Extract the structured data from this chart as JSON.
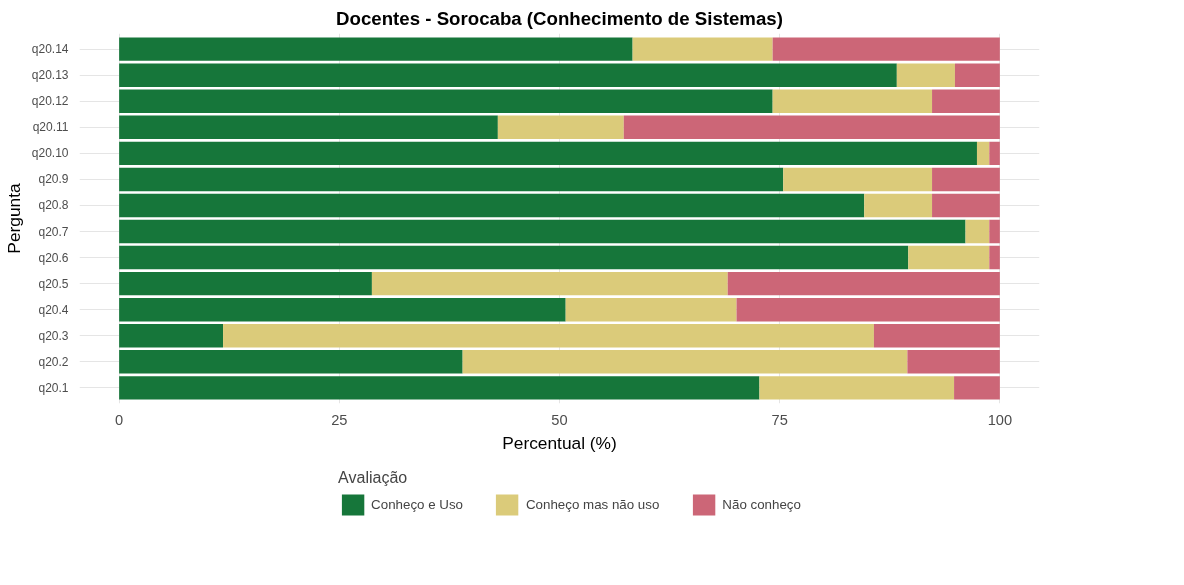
{
  "chart_data": {
    "type": "bar",
    "orientation": "horizontal",
    "stacked": true,
    "title": "Docentes - Sorocaba (Conhecimento de Sistemas)",
    "xlabel": "Percentual (%)",
    "ylabel": "Pergunta",
    "legend_title": "Avaliação",
    "categories": [
      "q20.14",
      "q20.13",
      "q20.12",
      "q20.11",
      "q20.10",
      "q20.9",
      "q20.8",
      "q20.7",
      "q20.6",
      "q20.5",
      "q20.4",
      "q20.3",
      "q20.2",
      "q20.1"
    ],
    "series": [
      {
        "name": "Conheço e Uso",
        "color": "#16763a",
        "values": [
          58.3,
          88.3,
          74.2,
          43.0,
          97.4,
          75.4,
          84.6,
          96.1,
          89.6,
          28.7,
          50.7,
          11.8,
          39.0,
          72.7
        ]
      },
      {
        "name": "Conheço mas não uso",
        "color": "#dbcb7a",
        "values": [
          15.9,
          6.6,
          18.1,
          14.3,
          1.4,
          16.9,
          7.7,
          2.7,
          9.2,
          40.4,
          19.4,
          73.9,
          50.5,
          22.1
        ]
      },
      {
        "name": "Não conheço",
        "color": "#cc6677",
        "values": [
          25.8,
          5.1,
          7.7,
          42.7,
          1.2,
          7.7,
          7.7,
          1.2,
          1.2,
          30.9,
          29.9,
          14.3,
          10.5,
          5.2
        ]
      }
    ],
    "xlim": [
      -4.5,
      104.5
    ],
    "xticks": [
      0,
      25,
      50,
      75,
      100
    ],
    "grid": true,
    "legend": "bottom"
  }
}
